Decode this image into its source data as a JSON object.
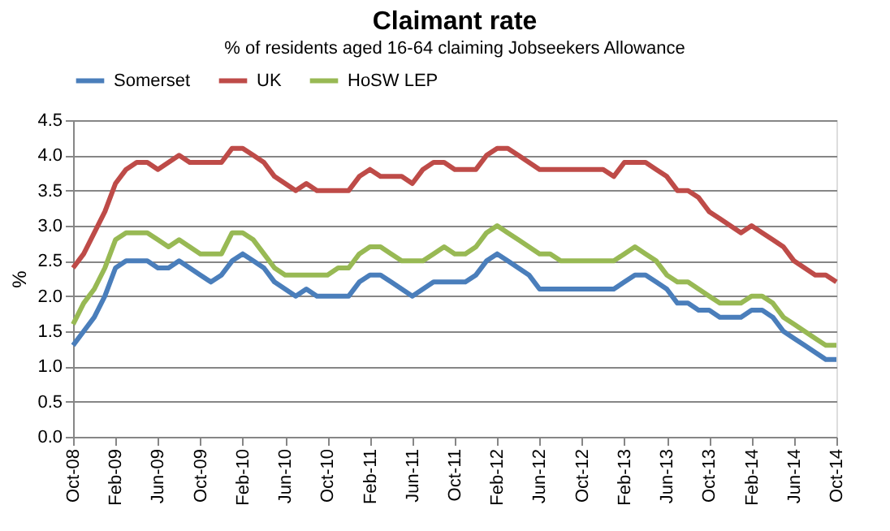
{
  "chart_data": {
    "type": "line",
    "title": "Claimant rate",
    "subtitle": "% of residents aged 16-64 claiming Jobseekers Allowance",
    "ylabel": "%",
    "categories": [
      "Oct-08",
      null,
      null,
      null,
      "Feb-09",
      null,
      null,
      null,
      "Jun-09",
      null,
      null,
      null,
      "Oct-09",
      null,
      null,
      null,
      "Feb-10",
      null,
      null,
      null,
      "Jun-10",
      null,
      null,
      null,
      "Oct-10",
      null,
      null,
      null,
      "Feb-11",
      null,
      null,
      null,
      "Jun-11",
      null,
      null,
      null,
      "Oct-11",
      null,
      null,
      null,
      "Feb-12",
      null,
      null,
      null,
      "Jun-12",
      null,
      null,
      null,
      "Oct-12",
      null,
      null,
      null,
      "Feb-13",
      null,
      null,
      null,
      "Jun-13",
      null,
      null,
      null,
      "Oct-13",
      null,
      null,
      null,
      "Feb-14",
      null,
      null,
      null,
      "Jun-14",
      null,
      null,
      null,
      "Oct-14"
    ],
    "series": [
      {
        "name": "Somerset",
        "color": "#4a7ebb",
        "values": [
          1.3,
          1.5,
          1.7,
          2.0,
          2.4,
          2.5,
          2.5,
          2.5,
          2.4,
          2.4,
          2.5,
          2.4,
          2.3,
          2.2,
          2.3,
          2.5,
          2.6,
          2.5,
          2.4,
          2.2,
          2.1,
          2.0,
          2.1,
          2.0,
          2.0,
          2.0,
          2.0,
          2.2,
          2.3,
          2.3,
          2.2,
          2.1,
          2.0,
          2.1,
          2.2,
          2.2,
          2.2,
          2.2,
          2.3,
          2.5,
          2.6,
          2.5,
          2.4,
          2.3,
          2.1,
          2.1,
          2.1,
          2.1,
          2.1,
          2.1,
          2.1,
          2.1,
          2.2,
          2.3,
          2.3,
          2.2,
          2.1,
          1.9,
          1.9,
          1.8,
          1.8,
          1.7,
          1.7,
          1.7,
          1.8,
          1.8,
          1.7,
          1.5,
          1.4,
          1.3,
          1.2,
          1.1,
          1.1
        ]
      },
      {
        "name": "UK",
        "color": "#be4b48",
        "values": [
          2.4,
          2.6,
          2.9,
          3.2,
          3.6,
          3.8,
          3.9,
          3.9,
          3.8,
          3.9,
          4.0,
          3.9,
          3.9,
          3.9,
          3.9,
          4.1,
          4.1,
          4.0,
          3.9,
          3.7,
          3.6,
          3.5,
          3.6,
          3.5,
          3.5,
          3.5,
          3.5,
          3.7,
          3.8,
          3.7,
          3.7,
          3.7,
          3.6,
          3.8,
          3.9,
          3.9,
          3.8,
          3.8,
          3.8,
          4.0,
          4.1,
          4.1,
          4.0,
          3.9,
          3.8,
          3.8,
          3.8,
          3.8,
          3.8,
          3.8,
          3.8,
          3.7,
          3.9,
          3.9,
          3.9,
          3.8,
          3.7,
          3.5,
          3.5,
          3.4,
          3.2,
          3.1,
          3.0,
          2.9,
          3.0,
          2.9,
          2.8,
          2.7,
          2.5,
          2.4,
          2.3,
          2.3,
          2.2
        ]
      },
      {
        "name": "HoSW LEP",
        "color": "#98b954",
        "values": [
          1.6,
          1.9,
          2.1,
          2.4,
          2.8,
          2.9,
          2.9,
          2.9,
          2.8,
          2.7,
          2.8,
          2.7,
          2.6,
          2.6,
          2.6,
          2.9,
          2.9,
          2.8,
          2.6,
          2.4,
          2.3,
          2.3,
          2.3,
          2.3,
          2.3,
          2.4,
          2.4,
          2.6,
          2.7,
          2.7,
          2.6,
          2.5,
          2.5,
          2.5,
          2.6,
          2.7,
          2.6,
          2.6,
          2.7,
          2.9,
          3.0,
          2.9,
          2.8,
          2.7,
          2.6,
          2.6,
          2.5,
          2.5,
          2.5,
          2.5,
          2.5,
          2.5,
          2.6,
          2.7,
          2.6,
          2.5,
          2.3,
          2.2,
          2.2,
          2.1,
          2.0,
          1.9,
          1.9,
          1.9,
          2.0,
          2.0,
          1.9,
          1.7,
          1.6,
          1.5,
          1.4,
          1.3,
          1.3
        ]
      }
    ],
    "ylim": [
      0,
      4.5
    ],
    "yticks": [
      {
        "value": 0,
        "label": "0.0"
      },
      {
        "value": 0.5,
        "label": "0.5"
      },
      {
        "value": 1,
        "label": "1.0"
      },
      {
        "value": 1.5,
        "label": "1.5"
      },
      {
        "value": 2,
        "label": "2.0"
      },
      {
        "value": 2.5,
        "label": "2.5"
      },
      {
        "value": 3,
        "label": "3.0"
      },
      {
        "value": 3.5,
        "label": "3.5"
      },
      {
        "value": 4,
        "label": "4.0"
      },
      {
        "value": 4.5,
        "label": "4.5"
      }
    ],
    "grid": "y",
    "legend": "top",
    "marker": "none",
    "line_style": "solid"
  }
}
